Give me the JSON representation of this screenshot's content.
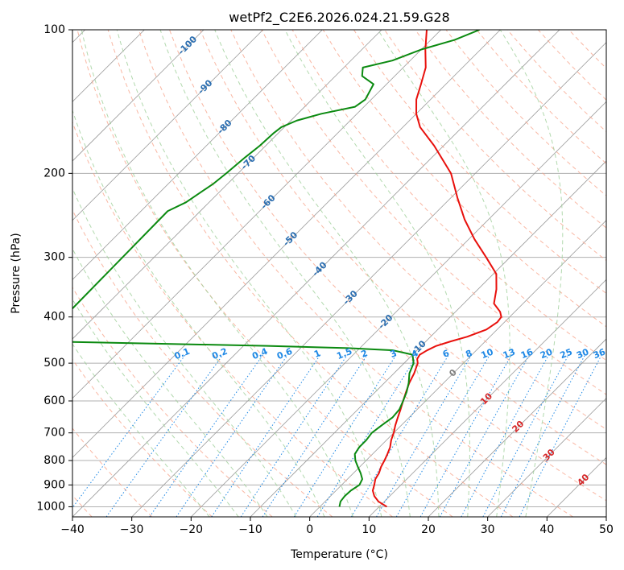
{
  "chart_data": {
    "type": "line",
    "subtype": "skew-t log-p",
    "title": "wetPf2_C2E6.2026.024.21.59.G28",
    "xlabel": "Temperature (°C)",
    "ylabel": "Pressure (hPa)",
    "xlim": [
      -40,
      50
    ],
    "ylim": [
      1050,
      100
    ],
    "y_scale": "log",
    "grid": true,
    "x_ticks": [
      {
        "value": -40,
        "label": "−40"
      },
      {
        "value": -30,
        "label": "−30"
      },
      {
        "value": -20,
        "label": "−20"
      },
      {
        "value": -10,
        "label": "−10"
      },
      {
        "value": 0,
        "label": "0"
      },
      {
        "value": 10,
        "label": "10"
      },
      {
        "value": 20,
        "label": "20"
      },
      {
        "value": 30,
        "label": "30"
      },
      {
        "value": 40,
        "label": "40"
      },
      {
        "value": 50,
        "label": "50"
      }
    ],
    "y_ticks": [
      {
        "value": 100,
        "label": "100"
      },
      {
        "value": 200,
        "label": "200"
      },
      {
        "value": 300,
        "label": "300"
      },
      {
        "value": 400,
        "label": "400"
      },
      {
        "value": 500,
        "label": "500"
      },
      {
        "value": 600,
        "label": "600"
      },
      {
        "value": 700,
        "label": "700"
      },
      {
        "value": 800,
        "label": "800"
      },
      {
        "value": 900,
        "label": "900"
      },
      {
        "value": 1000,
        "label": "1000"
      }
    ],
    "series": [
      {
        "color": "#e8100c",
        "points": [
          {
            "p": 1000,
            "t": 11.3
          },
          {
            "p": 975,
            "t": 9.0
          },
          {
            "p": 950,
            "t": 7.4
          },
          {
            "p": 925,
            "t": 6.2
          },
          {
            "p": 900,
            "t": 5.5
          },
          {
            "p": 875,
            "t": 4.7
          },
          {
            "p": 850,
            "t": 4.3
          },
          {
            "p": 825,
            "t": 3.6
          },
          {
            "p": 800,
            "t": 3.1
          },
          {
            "p": 775,
            "t": 2.5
          },
          {
            "p": 750,
            "t": 1.8
          },
          {
            "p": 725,
            "t": 0.8
          },
          {
            "p": 700,
            "t": 0.0
          },
          {
            "p": 675,
            "t": -1.0
          },
          {
            "p": 650,
            "t": -1.9
          },
          {
            "p": 625,
            "t": -2.8
          },
          {
            "p": 600,
            "t": -3.8
          },
          {
            "p": 575,
            "t": -4.8
          },
          {
            "p": 550,
            "t": -5.8
          },
          {
            "p": 525,
            "t": -6.6
          },
          {
            "p": 500,
            "t": -7.7
          },
          {
            "p": 490,
            "t": -8.5
          },
          {
            "p": 480,
            "t": -8.8
          },
          {
            "p": 470,
            "t": -8.3
          },
          {
            "p": 460,
            "t": -7.5
          },
          {
            "p": 450,
            "t": -5.8
          },
          {
            "p": 440,
            "t": -3.8
          },
          {
            "p": 425,
            "t": -1.8
          },
          {
            "p": 410,
            "t": -1.2
          },
          {
            "p": 400,
            "t": -1.4
          },
          {
            "p": 390,
            "t": -2.5
          },
          {
            "p": 375,
            "t": -4.9
          },
          {
            "p": 350,
            "t": -6.9
          },
          {
            "p": 325,
            "t": -9.5
          },
          {
            "p": 300,
            "t": -14.0
          },
          {
            "p": 275,
            "t": -19.0
          },
          {
            "p": 250,
            "t": -24.0
          },
          {
            "p": 225,
            "t": -28.9
          },
          {
            "p": 200,
            "t": -34.1
          },
          {
            "p": 175,
            "t": -41.6
          },
          {
            "p": 160,
            "t": -47.1
          },
          {
            "p": 150,
            "t": -50.0
          },
          {
            "p": 140,
            "t": -52.4
          },
          {
            "p": 130,
            "t": -54.2
          },
          {
            "p": 120,
            "t": -56.2
          },
          {
            "p": 110,
            "t": -59.3
          },
          {
            "p": 100,
            "t": -62.4
          }
        ]
      },
      {
        "color": "#0b8a10",
        "points": [
          {
            "p": 1000,
            "t": 3.3
          },
          {
            "p": 975,
            "t": 2.6
          },
          {
            "p": 950,
            "t": 2.4
          },
          {
            "p": 925,
            "t": 2.5
          },
          {
            "p": 900,
            "t": 3.0
          },
          {
            "p": 875,
            "t": 2.5
          },
          {
            "p": 850,
            "t": 1.2
          },
          {
            "p": 825,
            "t": -0.3
          },
          {
            "p": 800,
            "t": -1.8
          },
          {
            "p": 775,
            "t": -3.0
          },
          {
            "p": 750,
            "t": -3.4
          },
          {
            "p": 725,
            "t": -3.4
          },
          {
            "p": 700,
            "t": -3.7
          },
          {
            "p": 675,
            "t": -3.3
          },
          {
            "p": 650,
            "t": -2.8
          },
          {
            "p": 625,
            "t": -3.0
          },
          {
            "p": 600,
            "t": -3.8
          },
          {
            "p": 575,
            "t": -4.7
          },
          {
            "p": 550,
            "t": -5.9
          },
          {
            "p": 525,
            "t": -7.4
          },
          {
            "p": 500,
            "t": -8.4
          },
          {
            "p": 480,
            "t": -10.0
          },
          {
            "p": 470,
            "t": -14.0
          },
          {
            "p": 465,
            "t": -22.0
          },
          {
            "p": 460,
            "t": -36.0
          },
          {
            "p": 455,
            "t": -55.0
          },
          {
            "p": 450,
            "t": -75.0
          },
          {
            "p": 240,
            "t": -75.5
          },
          {
            "p": 230,
            "t": -73.9
          },
          {
            "p": 210,
            "t": -72.4
          },
          {
            "p": 200,
            "t": -72.0
          },
          {
            "p": 185,
            "t": -71.5
          },
          {
            "p": 175,
            "t": -71.0
          },
          {
            "p": 165,
            "t": -70.8
          },
          {
            "p": 160,
            "t": -70.5
          },
          {
            "p": 155,
            "t": -69.0
          },
          {
            "p": 150,
            "t": -66.0
          },
          {
            "p": 145,
            "t": -61.5
          },
          {
            "p": 140,
            "t": -61.0
          },
          {
            "p": 130,
            "t": -62.2
          },
          {
            "p": 125,
            "t": -65.5
          },
          {
            "p": 120,
            "t": -66.8
          },
          {
            "p": 116,
            "t": -63.0
          },
          {
            "p": 110,
            "t": -60.0
          },
          {
            "p": 105,
            "t": -56.0
          },
          {
            "p": 100,
            "t": -53.5
          }
        ]
      }
    ],
    "background_lines": {
      "dry_adiabats_c": [
        -50,
        -40,
        -30,
        -20,
        -10,
        0,
        10,
        20,
        30,
        40,
        50,
        60,
        70,
        80,
        90,
        100,
        110,
        120,
        130,
        140,
        150,
        160,
        170,
        180
      ],
      "moist_adiabats_c": [
        -20,
        -15,
        -10,
        -5,
        0,
        5,
        10,
        15,
        20,
        25,
        30,
        35
      ],
      "mixing_ratios_gkg": [
        0.1,
        0.2,
        0.4,
        0.6,
        1,
        1.5,
        2,
        3,
        4,
        6,
        8,
        10,
        13,
        16,
        20,
        25,
        30,
        36
      ]
    },
    "isotherm_labels": {
      "blue": [
        {
          "t": -100,
          "p": 108,
          "label": "-100"
        },
        {
          "t": -90,
          "p": 132,
          "label": "-90"
        },
        {
          "t": -80,
          "p": 160,
          "label": "-80"
        },
        {
          "t": -70,
          "p": 190,
          "label": "-70"
        },
        {
          "t": -60,
          "p": 230,
          "label": "-60"
        },
        {
          "t": -50,
          "p": 275,
          "label": "-50"
        },
        {
          "t": -40,
          "p": 318,
          "label": "-40"
        },
        {
          "t": -30,
          "p": 365,
          "label": "-30"
        },
        {
          "t": -20,
          "p": 410,
          "label": "-20"
        },
        {
          "t": -10,
          "p": 465,
          "label": "-10"
        }
      ],
      "gray": [
        {
          "t": 0,
          "p": 525,
          "label": "0"
        }
      ],
      "red": [
        {
          "t": 10,
          "p": 595,
          "label": "10"
        },
        {
          "t": 20,
          "p": 680,
          "label": "20"
        },
        {
          "t": 30,
          "p": 780,
          "label": "30"
        },
        {
          "t": 40,
          "p": 880,
          "label": "40"
        }
      ]
    },
    "mixing_ratio_labels": [
      "0.1",
      "0.2",
      "0.4",
      "0.6",
      "1",
      "1.5",
      "2",
      "3",
      "4",
      "6",
      "8",
      "10",
      "13",
      "16",
      "20",
      "25",
      "30",
      "36"
    ],
    "colors": {
      "temperature": "#e8100c",
      "dewpoint": "#0b8a10",
      "isotherm_label_blue": "#2a6db0",
      "isotherm_label_red": "#d62728",
      "mixing_ratio": "#1e88e5",
      "dry_adiabat": "#f7a58c",
      "moist_adiabat": "#9fd09a",
      "skewed_isotherm": "#9a9a9a",
      "grid": "#b0b0b0"
    }
  }
}
